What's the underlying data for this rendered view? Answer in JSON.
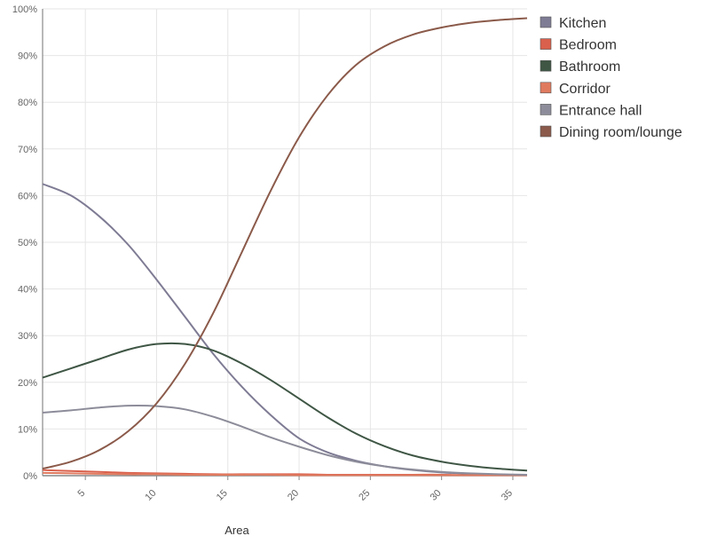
{
  "chart_data": {
    "type": "line",
    "xlabel": "Area",
    "ylabel": "",
    "xlim": [
      2,
      36
    ],
    "ylim": [
      0,
      100
    ],
    "x_ticks": [
      5,
      10,
      15,
      20,
      25,
      30,
      35
    ],
    "y_ticks": [
      0,
      10,
      20,
      30,
      40,
      50,
      60,
      70,
      80,
      90,
      100
    ],
    "y_tick_labels": [
      "0%",
      "10%",
      "20%",
      "30%",
      "40%",
      "50%",
      "60%",
      "70%",
      "80%",
      "90%",
      "100%"
    ],
    "grid": true,
    "legend_position": "right",
    "x": [
      2,
      4,
      6,
      8,
      10,
      12,
      14,
      16,
      18,
      20,
      22,
      24,
      26,
      28,
      30,
      32,
      34,
      36
    ],
    "series": [
      {
        "name": "Kitchen",
        "color": "#7e7b94",
        "values": [
          62.5,
          60,
          55.5,
          49.5,
          42,
          34,
          26,
          19,
          13,
          8,
          5,
          3.2,
          2,
          1.2,
          0.7,
          0.4,
          0.2,
          0.1
        ]
      },
      {
        "name": "Bedroom",
        "color": "#d9604c",
        "values": [
          1.2,
          1,
          0.8,
          0.6,
          0.5,
          0.4,
          0.3,
          0.3,
          0.3,
          0.3,
          0.2,
          0.2,
          0.2,
          0.2,
          0.2,
          0.1,
          0.1,
          0.1
        ]
      },
      {
        "name": "Bathroom",
        "color": "#3f5645",
        "values": [
          21,
          23,
          25,
          27,
          28.2,
          28.2,
          26.8,
          24,
          20.5,
          16.5,
          12.5,
          9,
          6.3,
          4.3,
          3,
          2.1,
          1.5,
          1.1
        ]
      },
      {
        "name": "Corridor",
        "color": "#e07a5f",
        "values": [
          0.6,
          0.5,
          0.4,
          0.3,
          0.3,
          0.2,
          0.2,
          0.2,
          0.2,
          0.1,
          0.1,
          0.1,
          0.1,
          0.1,
          0.1,
          0.1,
          0.1,
          0.1
        ]
      },
      {
        "name": "Entrance hall",
        "color": "#8c8c9a",
        "values": [
          13.5,
          14,
          14.6,
          15,
          14.9,
          14.2,
          12.6,
          10.5,
          8.2,
          6.2,
          4.4,
          3,
          2,
          1.3,
          0.8,
          0.5,
          0.3,
          0.2
        ]
      },
      {
        "name": "Dining room/lounge",
        "color": "#8b5a4a",
        "values": [
          1.5,
          3,
          5.5,
          9.5,
          15.5,
          24,
          35,
          48,
          61,
          72.5,
          81.5,
          88,
          92,
          94.5,
          96,
          97,
          97.6,
          98
        ]
      }
    ]
  }
}
